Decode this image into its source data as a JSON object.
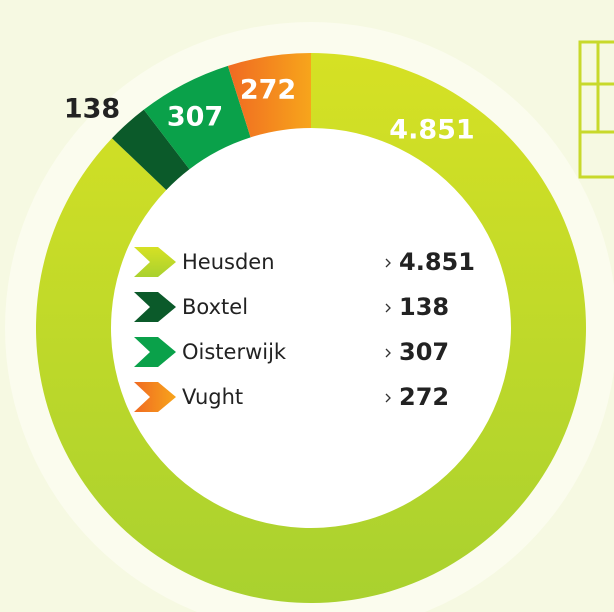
{
  "chart_data": {
    "type": "donut",
    "categories": [
      "Heusden",
      "Boxtel",
      "Oisterwijk",
      "Vught"
    ],
    "values": [
      4851,
      138,
      307,
      272
    ],
    "value_labels": [
      "4.851",
      "138",
      "307",
      "272"
    ],
    "colors": [
      "#c9dc26",
      "#0b5a2a",
      "#0aa14a",
      "#f28a1e"
    ]
  }
}
